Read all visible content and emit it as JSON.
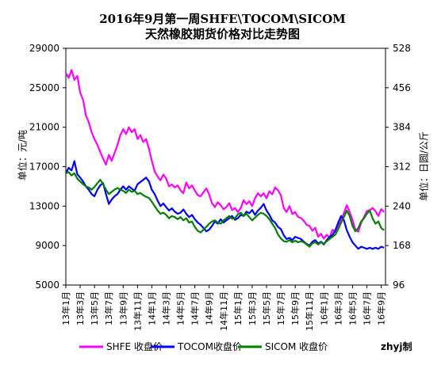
{
  "chart_data": {
    "type": "line",
    "title": "2016年9月第一周SHFE\\TOCOM\\SICOM",
    "subtitle": "天然橡胶期货价格对比走势图",
    "ylabel": "单位：元/吨",
    "y2label": "单位：日圆/公斤",
    "ylim": [
      5000,
      29000
    ],
    "y2lim": [
      96,
      528
    ],
    "yticks": [
      "5000",
      "9000",
      "13000",
      "17000",
      "21000",
      "25000",
      "29000"
    ],
    "y2ticks": [
      "96",
      "168",
      "240",
      "312",
      "384",
      "456",
      "528"
    ],
    "categories": [
      "13年1月",
      "13年3月",
      "13年5月",
      "13年7月",
      "13年9月",
      "13年11月",
      "14年1月",
      "14年3月",
      "14年5月",
      "14年7月",
      "14年9月",
      "14年11月",
      "15年1月",
      "15年3月",
      "15年5月",
      "15年7月",
      "15年9月",
      "15年11月",
      "16年1月",
      "16年3月",
      "16年5月",
      "16年7月",
      "16年9月"
    ],
    "x_end": 22.3,
    "legend_position": "bottom",
    "credit": "zhyj制",
    "series": [
      {
        "name": "SHFE 收盘价",
        "color": "#ff00ff",
        "axis": "left",
        "x": [
          0,
          0.2,
          0.4,
          0.6,
          0.8,
          1.0,
          1.2,
          1.4,
          1.6,
          1.8,
          2.0,
          2.2,
          2.4,
          2.6,
          2.8,
          3.0,
          3.2,
          3.4,
          3.6,
          3.8,
          4.0,
          4.2,
          4.4,
          4.6,
          4.8,
          5.0,
          5.2,
          5.4,
          5.6,
          5.8,
          6.0,
          6.2,
          6.4,
          6.6,
          6.8,
          7.0,
          7.2,
          7.4,
          7.6,
          7.8,
          8.0,
          8.2,
          8.4,
          8.6,
          8.8,
          9.0,
          9.2,
          9.4,
          9.6,
          9.8,
          10.0,
          10.2,
          10.4,
          10.6,
          10.8,
          11.0,
          11.2,
          11.4,
          11.6,
          11.8,
          12.0,
          12.2,
          12.4,
          12.6,
          12.8,
          13.0,
          13.2,
          13.4,
          13.6,
          13.8,
          14.0,
          14.2,
          14.4,
          14.6,
          14.8,
          15.0,
          15.2,
          15.4,
          15.6,
          15.8,
          16.0,
          16.2,
          16.4,
          16.6,
          16.8,
          17.0,
          17.2,
          17.4,
          17.6,
          17.8,
          18.0,
          18.2,
          18.4,
          18.6,
          18.8,
          19.0,
          19.2,
          19.4,
          19.6,
          19.8,
          20.0,
          20.2,
          20.4,
          20.6,
          20.8,
          21.0,
          21.2,
          21.4,
          21.6,
          21.8,
          22.0,
          22.2
        ],
        "values": [
          26500,
          26000,
          26800,
          25800,
          26200,
          24500,
          23800,
          22200,
          21500,
          20500,
          19800,
          19200,
          18500,
          17800,
          17200,
          18200,
          17600,
          18400,
          19200,
          20200,
          20800,
          20300,
          21000,
          20500,
          20800,
          19800,
          20200,
          19500,
          19800,
          18800,
          17600,
          16500,
          16000,
          15600,
          16200,
          15800,
          15000,
          15200,
          14900,
          15100,
          14600,
          14300,
          15400,
          14800,
          15100,
          14600,
          14100,
          14000,
          14400,
          14800,
          14200,
          13300,
          12900,
          13400,
          13100,
          12700,
          12900,
          13300,
          12600,
          12800,
          12400,
          12800,
          13600,
          13200,
          13500,
          13000,
          13800,
          14300,
          14000,
          14300,
          13800,
          14500,
          14200,
          14900,
          14600,
          14100,
          12800,
          12400,
          13000,
          12200,
          12400,
          11900,
          11800,
          11500,
          11100,
          11000,
          10500,
          10800,
          9900,
          10200,
          9700,
          10100,
          9800,
          10600,
          10400,
          11100,
          11600,
          12300,
          13100,
          12400,
          11600,
          10600,
          10400,
          11300,
          11900,
          12500,
          12600,
          12800,
          12500,
          12000,
          12700,
          12400
        ]
      },
      {
        "name": "TOCOM收盘价",
        "color": "#0000ff",
        "axis": "right",
        "x": [
          0,
          0.2,
          0.4,
          0.6,
          0.8,
          1.0,
          1.2,
          1.4,
          1.6,
          1.8,
          2.0,
          2.2,
          2.4,
          2.6,
          2.8,
          3.0,
          3.2,
          3.4,
          3.6,
          3.8,
          4.0,
          4.2,
          4.4,
          4.6,
          4.8,
          5.0,
          5.2,
          5.4,
          5.6,
          5.8,
          6.0,
          6.2,
          6.4,
          6.6,
          6.8,
          7.0,
          7.2,
          7.4,
          7.6,
          7.8,
          8.0,
          8.2,
          8.4,
          8.6,
          8.8,
          9.0,
          9.2,
          9.4,
          9.6,
          9.8,
          10.0,
          10.2,
          10.4,
          10.6,
          10.8,
          11.0,
          11.2,
          11.4,
          11.6,
          11.8,
          12.0,
          12.2,
          12.4,
          12.6,
          12.8,
          13.0,
          13.2,
          13.4,
          13.6,
          13.8,
          14.0,
          14.2,
          14.4,
          14.6,
          14.8,
          15.0,
          15.2,
          15.4,
          15.6,
          15.8,
          16.0,
          16.2,
          16.4,
          16.6,
          16.8,
          17.0,
          17.2,
          17.4,
          17.6,
          17.8,
          18.0,
          18.2,
          18.4,
          18.6,
          18.8,
          19.0,
          19.2,
          19.4,
          19.6,
          19.8,
          20.0,
          20.2,
          20.4,
          20.6,
          20.8,
          21.0,
          21.2,
          21.4,
          21.6,
          21.8,
          22.0,
          22.2
        ],
        "values": [
          300,
          310,
          305,
          322,
          298,
          292,
          285,
          276,
          270,
          262,
          258,
          270,
          278,
          282,
          262,
          244,
          252,
          258,
          262,
          270,
          276,
          270,
          276,
          272,
          268,
          280,
          284,
          288,
          292,
          285,
          270,
          262,
          250,
          240,
          245,
          238,
          232,
          236,
          230,
          226,
          228,
          234,
          226,
          220,
          224,
          216,
          210,
          206,
          200,
          194,
          197,
          204,
          212,
          208,
          216,
          210,
          214,
          218,
          222,
          215,
          218,
          224,
          222,
          230,
          227,
          233,
          224,
          232,
          237,
          244,
          232,
          224,
          214,
          210,
          202,
          198,
          187,
          180,
          182,
          178,
          184,
          182,
          180,
          175,
          171,
          168,
          175,
          178,
          172,
          175,
          170,
          178,
          184,
          187,
          196,
          210,
          222,
          214,
          196,
          184,
          174,
          168,
          162,
          166,
          164,
          162,
          164,
          162,
          164,
          162,
          166,
          164
        ]
      },
      {
        "name": "SICOM 收盘价",
        "color": "#008000",
        "axis": "right",
        "x": [
          0,
          0.2,
          0.4,
          0.6,
          0.8,
          1.0,
          1.2,
          1.4,
          1.6,
          1.8,
          2.0,
          2.2,
          2.4,
          2.6,
          2.8,
          3.0,
          3.2,
          3.4,
          3.6,
          3.8,
          4.0,
          4.2,
          4.4,
          4.6,
          4.8,
          5.0,
          5.2,
          5.4,
          5.6,
          5.8,
          6.0,
          6.2,
          6.4,
          6.6,
          6.8,
          7.0,
          7.2,
          7.4,
          7.6,
          7.8,
          8.0,
          8.2,
          8.4,
          8.6,
          8.8,
          9.0,
          9.2,
          9.4,
          9.6,
          9.8,
          10.0,
          10.2,
          10.4,
          10.6,
          10.8,
          11.0,
          11.2,
          11.4,
          11.6,
          11.8,
          12.0,
          12.2,
          12.4,
          12.6,
          12.8,
          13.0,
          13.2,
          13.4,
          13.6,
          13.8,
          14.0,
          14.2,
          14.4,
          14.6,
          14.8,
          15.0,
          15.2,
          15.4,
          15.6,
          15.8,
          16.0,
          16.2,
          16.4,
          16.6,
          16.8,
          17.0,
          17.2,
          17.4,
          17.6,
          17.8,
          18.0,
          18.2,
          18.4,
          18.6,
          18.8,
          19.0,
          19.2,
          19.4,
          19.6,
          19.8,
          20.0,
          20.2,
          20.4,
          20.6,
          20.8,
          21.0,
          21.2,
          21.4,
          21.6,
          21.8,
          22.0,
          22.2
        ],
        "values": [
          300,
          302,
          296,
          300,
          290,
          285,
          280,
          276,
          274,
          270,
          275,
          282,
          288,
          280,
          270,
          262,
          266,
          270,
          273,
          270,
          268,
          264,
          270,
          266,
          268,
          262,
          264,
          260,
          257,
          255,
          248,
          240,
          232,
          226,
          228,
          224,
          218,
          222,
          220,
          216,
          220,
          214,
          218,
          210,
          212,
          202,
          195,
          192,
          197,
          202,
          208,
          212,
          214,
          210,
          208,
          214,
          218,
          222,
          217,
          218,
          225,
          228,
          222,
          226,
          220,
          214,
          219,
          224,
          228,
          226,
          222,
          216,
          208,
          200,
          188,
          181,
          176,
          175,
          178,
          174,
          177,
          174,
          176,
          174,
          170,
          166,
          172,
          174,
          170,
          174,
          171,
          176,
          180,
          184,
          188,
          198,
          210,
          220,
          232,
          222,
          204,
          194,
          200,
          212,
          218,
          226,
          232,
          218,
          208,
          212,
          200,
          196
        ]
      }
    ]
  }
}
